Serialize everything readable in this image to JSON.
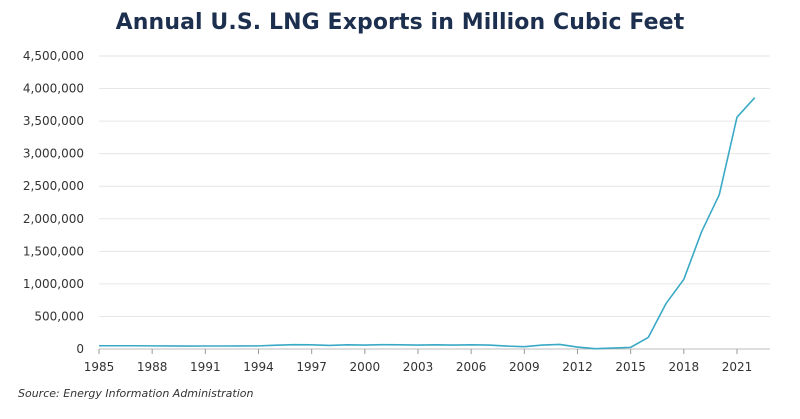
{
  "chart_data": {
    "type": "line",
    "title": "Annual U.S. LNG Exports in Million Cubic Feet",
    "xlabel": "",
    "ylabel": "",
    "xlim": [
      1985,
      2022
    ],
    "ylim": [
      0,
      4500000
    ],
    "grid": true,
    "x_ticks": [
      1985,
      1988,
      1991,
      1994,
      1997,
      2000,
      2003,
      2006,
      2009,
      2012,
      2015,
      2018,
      2021
    ],
    "x_tick_labels": [
      "1985",
      "1988",
      "1991",
      "1994",
      "1997",
      "2000",
      "2003",
      "2006",
      "2009",
      "2012",
      "2015",
      "2018",
      "2021"
    ],
    "y_ticks": [
      0,
      500000,
      1000000,
      1500000,
      2000000,
      2500000,
      3000000,
      3500000,
      4000000,
      4500000
    ],
    "y_tick_labels": [
      "0",
      "500,000",
      "1,000,000",
      "1,500,000",
      "2,000,000",
      "2,500,000",
      "3,000,000",
      "3,500,000",
      "4,000,000",
      "4,500,000"
    ],
    "series": [
      {
        "color": "#3aa9c6",
        "x": [
          1985,
          1986,
          1987,
          1988,
          1989,
          1990,
          1991,
          1992,
          1993,
          1994,
          1995,
          1996,
          1997,
          1998,
          1999,
          2000,
          2001,
          2002,
          2003,
          2004,
          2005,
          2006,
          2007,
          2008,
          2009,
          2010,
          2011,
          2012,
          2013,
          2014,
          2015,
          2016,
          2017,
          2018,
          2019,
          2020,
          2021,
          2022
        ],
        "y": [
          50000,
          50000,
          50000,
          48000,
          47000,
          45000,
          46000,
          46000,
          47000,
          48000,
          58000,
          66000,
          65000,
          55000,
          65000,
          60000,
          66000,
          65000,
          60000,
          65000,
          60000,
          65000,
          60000,
          45000,
          35000,
          60000,
          70000,
          30000,
          5000,
          15000,
          25000,
          180000,
          700000,
          1070000,
          1800000,
          2370000,
          3560000,
          3860000
        ]
      }
    ]
  },
  "source_note": "Source: Energy Information Administration"
}
